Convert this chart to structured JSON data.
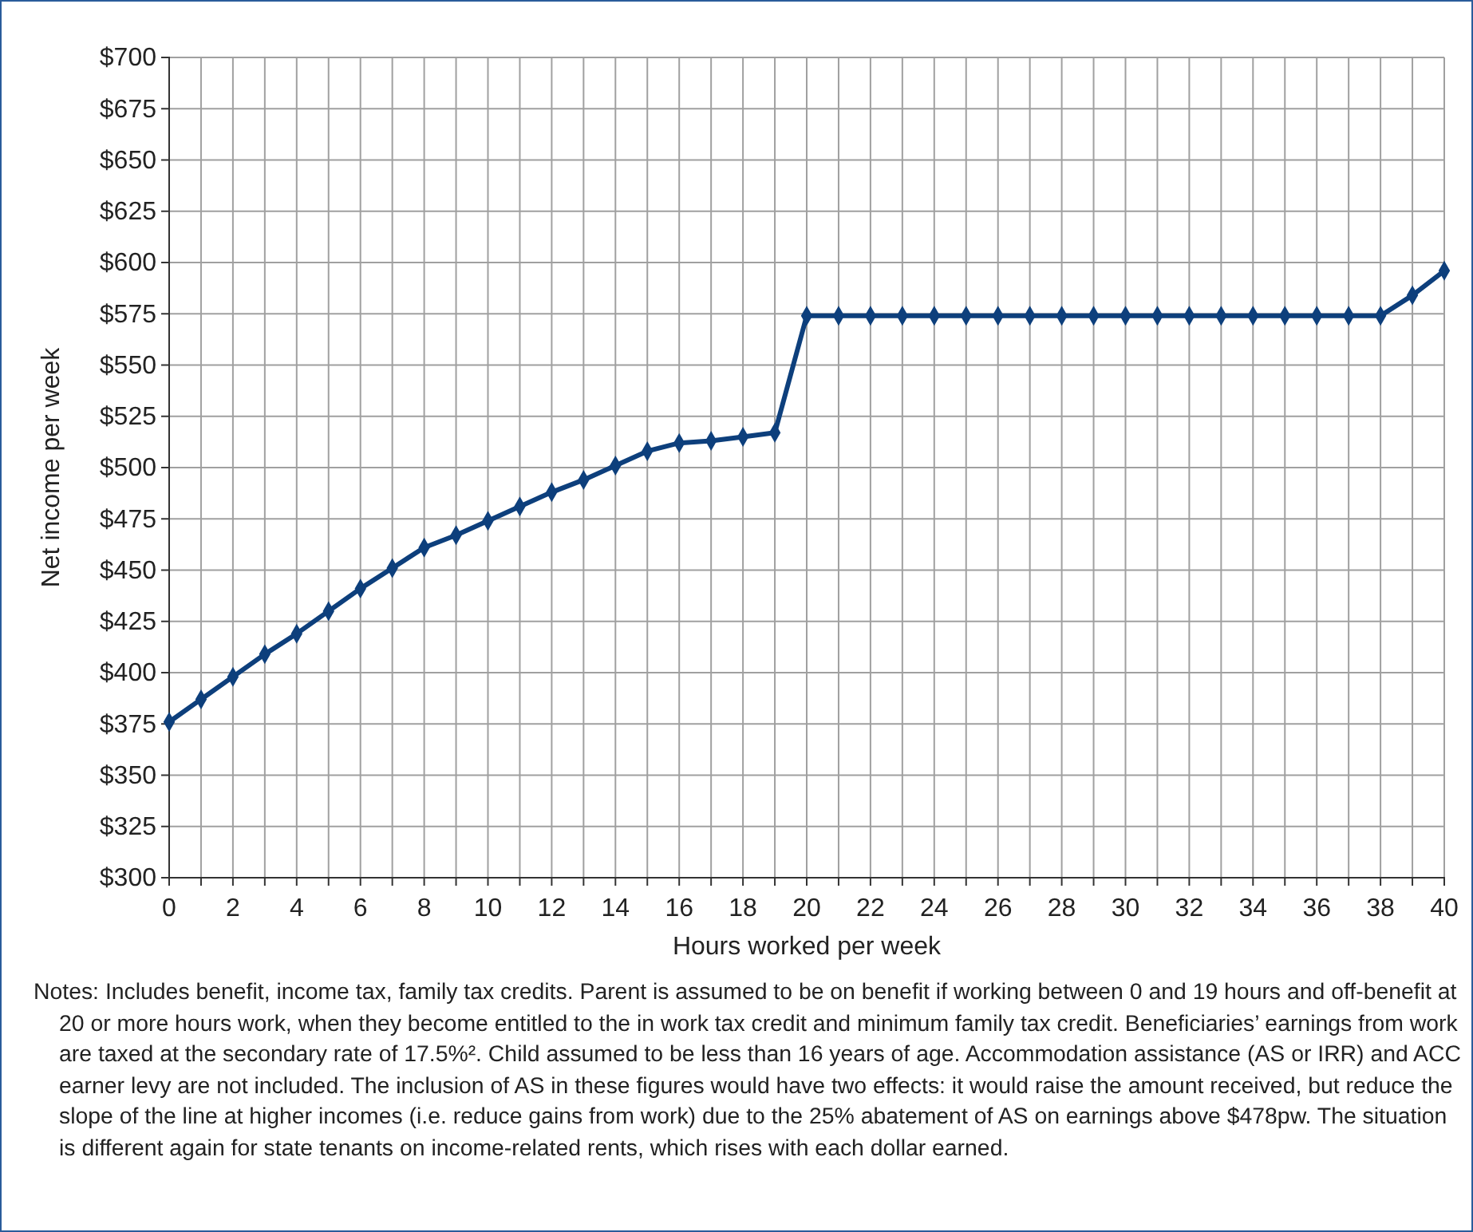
{
  "chart_data": {
    "type": "line",
    "xlabel": "Hours worked per week",
    "ylabel": "Net income per week",
    "x": [
      0,
      1,
      2,
      3,
      4,
      5,
      6,
      7,
      8,
      9,
      10,
      11,
      12,
      13,
      14,
      15,
      16,
      17,
      18,
      19,
      20,
      21,
      22,
      23,
      24,
      25,
      26,
      27,
      28,
      29,
      30,
      31,
      32,
      33,
      34,
      35,
      36,
      37,
      38,
      39,
      40
    ],
    "series": [
      {
        "color": "#0d3f7c",
        "values": [
          376,
          387,
          398,
          409,
          419,
          430,
          441,
          451,
          461,
          467,
          474,
          481,
          488,
          494,
          501,
          508,
          512,
          513,
          515,
          517,
          574,
          574,
          574,
          574,
          574,
          574,
          574,
          574,
          574,
          574,
          574,
          574,
          574,
          574,
          574,
          574,
          574,
          574,
          574,
          584,
          596
        ]
      }
    ],
    "xlim": [
      0,
      40
    ],
    "xticks": [
      0,
      {
        "value": 1,
        "label": null
      },
      2,
      {
        "value": 3,
        "label": null
      },
      4,
      {
        "value": 5,
        "label": null
      },
      6,
      {
        "value": 7,
        "label": null
      },
      8,
      {
        "value": 9,
        "label": null
      },
      10,
      {
        "value": 11,
        "label": null
      },
      12,
      {
        "value": 13,
        "label": null
      },
      14,
      {
        "value": 15,
        "label": null
      },
      16,
      {
        "value": 17,
        "label": null
      },
      18,
      {
        "value": 19,
        "label": null
      },
      20,
      {
        "value": 21,
        "label": null
      },
      22,
      {
        "value": 23,
        "label": null
      },
      24,
      {
        "value": 25,
        "label": null
      },
      26,
      {
        "value": 27,
        "label": null
      },
      28,
      {
        "value": 29,
        "label": null
      },
      30,
      {
        "value": 31,
        "label": null
      },
      32,
      {
        "value": 33,
        "label": null
      },
      34,
      {
        "value": 35,
        "label": null
      },
      36,
      {
        "value": 37,
        "label": null
      },
      38,
      {
        "value": 39,
        "label": null
      },
      40
    ],
    "ylim": [
      300,
      700
    ],
    "yticks": [
      {
        "value": 300,
        "label": "$300"
      },
      {
        "value": 325,
        "label": "$325"
      },
      {
        "value": 350,
        "label": "$350"
      },
      {
        "value": 375,
        "label": "$375"
      },
      {
        "value": 400,
        "label": "$400"
      },
      {
        "value": 425,
        "label": "$425"
      },
      {
        "value": 450,
        "label": "$450"
      },
      {
        "value": 475,
        "label": "$475"
      },
      {
        "value": 500,
        "label": "$500"
      },
      {
        "value": 525,
        "label": "$525"
      },
      {
        "value": 550,
        "label": "$550"
      },
      {
        "value": 575,
        "label": "$575"
      },
      {
        "value": 600,
        "label": "$600"
      },
      {
        "value": 625,
        "label": "$625"
      },
      {
        "value": 650,
        "label": "$650"
      },
      {
        "value": 675,
        "label": "$675"
      },
      {
        "value": 700,
        "label": "$700"
      }
    ],
    "grid": true,
    "marker": "diamond",
    "line_style": "solid",
    "annotations": [
      "Notes: Includes benefit, income tax, family tax credits. Parent is assumed to be on benefit if working  between 0 and 19 hours and off-benefit at 20 or more hours work, when they become entitled to the in work tax credit and minimum family tax credit. Beneficiaries’ earnings from work are taxed at the secondary rate of 17.5%². Child assumed to be less than 16 years of age. Accommodation assistance (AS or IRR) and ACC earner levy are not included. The inclusion of AS in these figures would have two effects: it would raise the amount received, but reduce the slope of the line at higher incomes (i.e. reduce gains from work) due to the 25% abatement of AS on earnings above $478pw. The situation is different again for state tenants on income-related rents, which rises with each dollar earned."
    ]
  }
}
